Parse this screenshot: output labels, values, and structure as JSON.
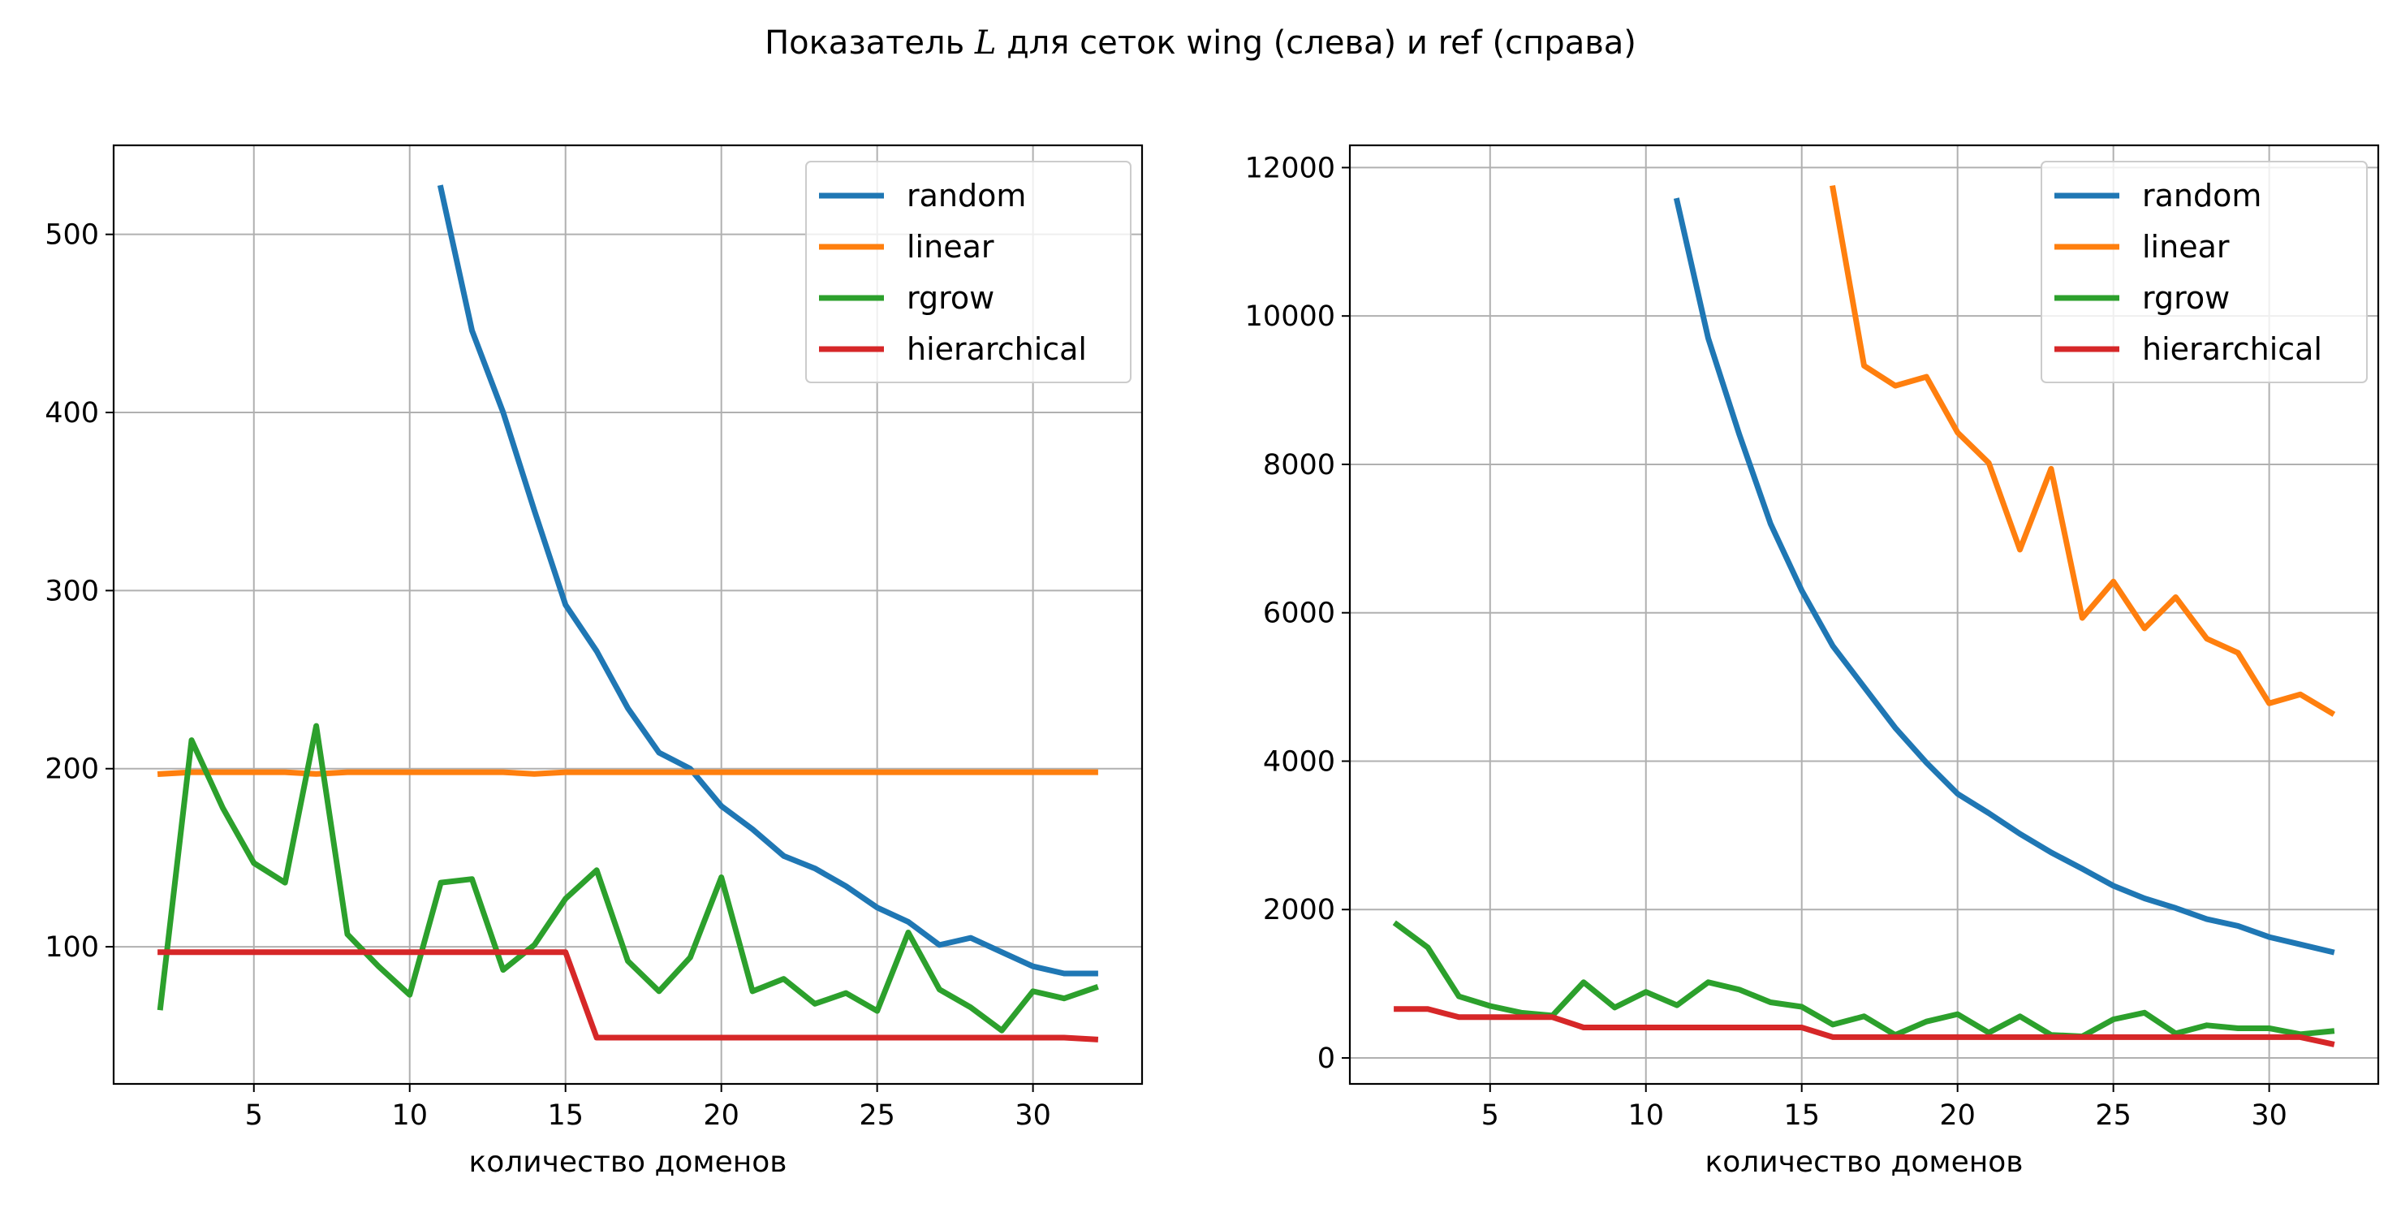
{
  "figure": {
    "title": "Показатель L для сеток wing (слева) и ref (справа)",
    "title_parts": [
      "Показатель ",
      "L",
      " для сеток wing (слева) и ref (справа)"
    ]
  },
  "colors": {
    "random": "#1f77b4",
    "linear": "#ff7f0e",
    "rgrow": "#2ca02c",
    "hierarchical": "#d62728",
    "grid": "#b0b0b0"
  },
  "chart_data": [
    {
      "type": "line",
      "title": "",
      "xlabel": "количество доменов",
      "ylabel": "",
      "xlim": [
        0.5,
        33.5
      ],
      "ylim": [
        23,
        550
      ],
      "xticks": [
        5,
        10,
        15,
        20,
        25,
        30
      ],
      "yticks": [
        100,
        200,
        300,
        400,
        500
      ],
      "grid": true,
      "legend": "top-right",
      "series": [
        {
          "name": "random",
          "x": [
            11,
            12,
            13,
            14,
            15,
            16,
            17,
            18,
            19,
            20,
            21,
            22,
            23,
            24,
            25,
            26,
            27,
            28,
            29,
            30,
            31,
            32
          ],
          "values": [
            526,
            446,
            400,
            345,
            292,
            266,
            234,
            209,
            200,
            179,
            166,
            151,
            144,
            134,
            122,
            114,
            101,
            105,
            97,
            89,
            85,
            85
          ]
        },
        {
          "name": "linear",
          "x": [
            2,
            3,
            4,
            5,
            6,
            7,
            8,
            9,
            10,
            11,
            12,
            13,
            14,
            15,
            16,
            17,
            18,
            19,
            20,
            21,
            22,
            23,
            24,
            25,
            26,
            27,
            28,
            29,
            30,
            31,
            32
          ],
          "values": [
            197,
            198,
            198,
            198,
            198,
            197,
            198,
            198,
            198,
            198,
            198,
            198,
            197,
            198,
            198,
            198,
            198,
            198,
            198,
            198,
            198,
            198,
            198,
            198,
            198,
            198,
            198,
            198,
            198,
            198,
            198
          ]
        },
        {
          "name": "rgrow",
          "x": [
            2,
            3,
            4,
            5,
            6,
            7,
            8,
            9,
            10,
            11,
            12,
            13,
            14,
            15,
            16,
            17,
            18,
            19,
            20,
            21,
            22,
            23,
            24,
            25,
            26,
            27,
            28,
            29,
            30,
            31,
            32
          ],
          "values": [
            66,
            216,
            178,
            147,
            136,
            224,
            107,
            89,
            73,
            136,
            138,
            87,
            101,
            127,
            143,
            92,
            75,
            94,
            139,
            75,
            82,
            68,
            74,
            64,
            108,
            76,
            66,
            53,
            75,
            71,
            77
          ]
        },
        {
          "name": "hierarchical",
          "x": [
            2,
            3,
            4,
            5,
            6,
            7,
            8,
            9,
            10,
            11,
            12,
            13,
            14,
            15,
            16,
            17,
            18,
            19,
            20,
            21,
            22,
            23,
            24,
            25,
            26,
            27,
            28,
            29,
            30,
            31,
            32
          ],
          "values": [
            97,
            97,
            97,
            97,
            97,
            97,
            97,
            97,
            97,
            97,
            97,
            97,
            97,
            97,
            49,
            49,
            49,
            49,
            49,
            49,
            49,
            49,
            49,
            49,
            49,
            49,
            49,
            49,
            49,
            49,
            48
          ]
        }
      ]
    },
    {
      "type": "line",
      "title": "",
      "xlabel": "количество доменов",
      "ylabel": "",
      "xlim": [
        0.5,
        33.5
      ],
      "ylim": [
        -350,
        12300
      ],
      "xticks": [
        5,
        10,
        15,
        20,
        25,
        30
      ],
      "yticks": [
        0,
        2000,
        4000,
        6000,
        8000,
        10000,
        12000
      ],
      "grid": true,
      "legend": "top-right",
      "series": [
        {
          "name": "random",
          "x": [
            11,
            12,
            13,
            14,
            15,
            16,
            17,
            18,
            19,
            20,
            21,
            22,
            23,
            24,
            25,
            26,
            27,
            28,
            29,
            30,
            31,
            32
          ],
          "values": [
            11550,
            9700,
            8400,
            7200,
            6300,
            5550,
            5000,
            4450,
            3980,
            3560,
            3300,
            3020,
            2770,
            2550,
            2320,
            2150,
            2020,
            1870,
            1780,
            1630,
            1530,
            1430
          ]
        },
        {
          "name": "linear",
          "x": [
            16,
            17,
            18,
            19,
            20,
            21,
            22,
            23,
            24,
            25,
            26,
            27,
            28,
            29,
            30,
            31,
            32
          ],
          "values": [
            11720,
            9330,
            9060,
            9180,
            8430,
            8020,
            6850,
            7940,
            5930,
            6420,
            5790,
            6210,
            5650,
            5460,
            4780,
            4900,
            4650
          ]
        },
        {
          "name": "rgrow",
          "x": [
            2,
            3,
            4,
            5,
            6,
            7,
            8,
            9,
            10,
            11,
            12,
            13,
            14,
            15,
            16,
            17,
            18,
            19,
            20,
            21,
            22,
            23,
            24,
            25,
            26,
            27,
            28,
            29,
            30,
            31,
            32
          ],
          "values": [
            1800,
            1490,
            830,
            700,
            610,
            570,
            1020,
            680,
            890,
            710,
            1020,
            920,
            750,
            690,
            450,
            560,
            310,
            490,
            590,
            340,
            560,
            310,
            290,
            520,
            610,
            330,
            440,
            400,
            400,
            320,
            360
          ]
        },
        {
          "name": "hierarchical",
          "x": [
            2,
            3,
            4,
            5,
            6,
            7,
            8,
            9,
            10,
            11,
            12,
            13,
            14,
            15,
            16,
            17,
            18,
            19,
            20,
            21,
            22,
            23,
            24,
            25,
            26,
            27,
            28,
            29,
            30,
            31,
            32
          ],
          "values": [
            660,
            660,
            550,
            550,
            550,
            550,
            410,
            410,
            410,
            410,
            410,
            410,
            410,
            410,
            280,
            280,
            280,
            280,
            280,
            280,
            280,
            280,
            280,
            280,
            280,
            280,
            280,
            280,
            280,
            280,
            190
          ]
        }
      ]
    }
  ]
}
